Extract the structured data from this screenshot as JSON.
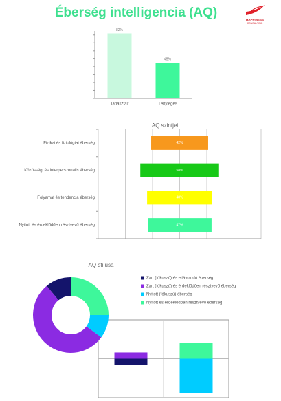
{
  "header": {
    "title": "Éberség intelligencia (AQ)",
    "logo": [
      "HAPPINESS",
      "CONSULTING"
    ]
  },
  "chart_data": [
    {
      "type": "bar",
      "categories": [
        "Tapasztalt",
        "Tényleges"
      ],
      "values": [
        82,
        45
      ],
      "value_labels": [
        "82%",
        "45%"
      ],
      "colors": [
        "#c8f8de",
        "#3ef79b"
      ],
      "ylim": [
        0,
        85
      ],
      "yticks": [
        0,
        10,
        20,
        30,
        40,
        50,
        60,
        70,
        80
      ]
    },
    {
      "type": "funnel",
      "title": "AQ szintjei",
      "categories": [
        "Fizikai és fiziológiai éberség",
        "Közösségi és interperszonális éberség",
        "Folyamat és tendencia éberség",
        "Nyitott és érdeklődően résztvevő éberség"
      ],
      "values": [
        42,
        58,
        48,
        47
      ],
      "value_labels": [
        "42%",
        "58%",
        "48%",
        "47%"
      ],
      "colors": [
        "#f7981d",
        "#17c917",
        "#ffff00",
        "#3ef79b"
      ],
      "xlim": [
        0,
        120
      ],
      "xticks": [
        0,
        20,
        40,
        60,
        80,
        100,
        120
      ],
      "grid": true
    },
    {
      "type": "donut",
      "title": "AQ stílusa",
      "categories": [
        "Zárt (fókuszú) és eltávolodó éberség",
        "Zárt (fókuszú) és érdeklődően résztvevő éberség",
        "Nyitott (fókuszú) éberség",
        "Nyitott és érdeklődően résztvevő éberség"
      ],
      "values": [
        11,
        54,
        10,
        25
      ],
      "colors": [
        "#14146b",
        "#8b2be2",
        "#00ccff",
        "#3ef79b"
      ],
      "direction": "counterclockwise"
    },
    {
      "type": "stacked_bar",
      "categories": [
        null,
        null
      ],
      "ylim": [
        -50,
        50
      ],
      "yticks": [
        0
      ],
      "series": [
        {
          "color": "#14146b",
          "values": [
            -8,
            0
          ]
        },
        {
          "color": "#8b2be2",
          "values": [
            8,
            0
          ]
        },
        {
          "color": "#00ccff",
          "values": [
            0,
            -44
          ]
        },
        {
          "color": "#3ef79b",
          "values": [
            0,
            20
          ]
        }
      ]
    }
  ]
}
